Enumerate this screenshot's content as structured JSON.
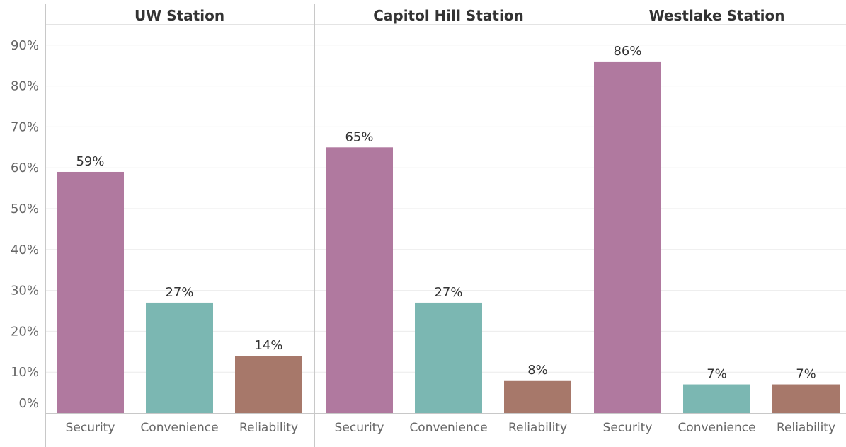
{
  "chart_data": {
    "type": "bar",
    "panels": [
      {
        "title": "UW Station",
        "categories": [
          "Security",
          "Convenience",
          "Reliability"
        ],
        "values": [
          59,
          27,
          14
        ],
        "labels": [
          "59%",
          "27%",
          "14%"
        ]
      },
      {
        "title": "Capitol Hill Station",
        "categories": [
          "Security",
          "Convenience",
          "Reliability"
        ],
        "values": [
          65,
          27,
          8
        ],
        "labels": [
          "65%",
          "27%",
          "8%"
        ]
      },
      {
        "title": "Westlake Station",
        "categories": [
          "Security",
          "Convenience",
          "Reliability"
        ],
        "values": [
          86,
          7,
          7
        ],
        "labels": [
          "86%",
          "7%",
          "7%"
        ]
      }
    ],
    "yticks": [
      "0%",
      "10%",
      "20%",
      "30%",
      "40%",
      "50%",
      "60%",
      "70%",
      "80%",
      "90%"
    ],
    "ylim": [
      0,
      95
    ],
    "grid": true,
    "colors": {
      "Security": "#B0799F",
      "Convenience": "#7BB7B2",
      "Reliability": "#A7786A",
      "grid": "#EBEBEB",
      "divider": "#C8C8C8",
      "axis_text": "#666666",
      "label_text": "#333333"
    }
  }
}
